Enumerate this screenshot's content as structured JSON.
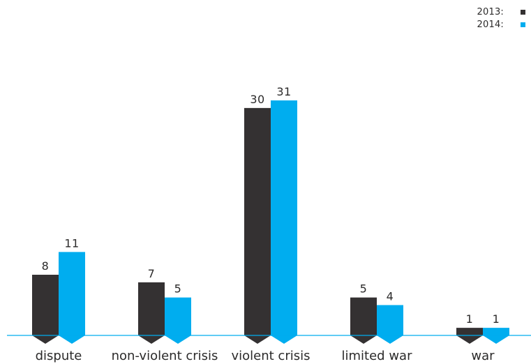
{
  "chart_data": {
    "type": "bar",
    "categories": [
      "dispute",
      "non-violent crisis",
      "violent crisis",
      "limited war",
      "war"
    ],
    "series": [
      {
        "name": "2013:",
        "values": [
          8,
          7,
          30,
          5,
          1
        ],
        "color": "#343132"
      },
      {
        "name": "2014:",
        "values": [
          11,
          5,
          31,
          4,
          1
        ],
        "color": "#00adef"
      }
    ],
    "title": "",
    "xlabel": "",
    "ylabel": "",
    "ylim": [
      0,
      31
    ],
    "grid": false,
    "legend": "top-right",
    "baseline_color": "#00adef"
  }
}
